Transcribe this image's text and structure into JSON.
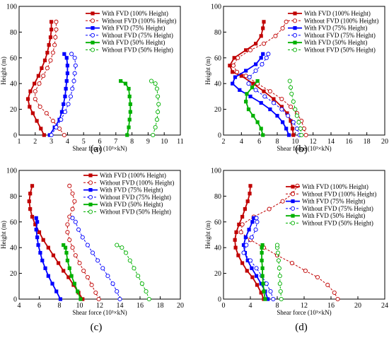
{
  "chart_data": [
    {
      "type": "line",
      "panel_label": "(a)",
      "xlabel": "Shear force (10³×kN)",
      "ylabel": "Height (m)",
      "xlim": [
        1,
        11
      ],
      "ylim": [
        0,
        100
      ],
      "xticks": [
        1,
        2,
        3,
        4,
        5,
        6,
        7,
        8,
        9,
        10,
        11
      ],
      "yticks": [
        0,
        20,
        40,
        60,
        80,
        100
      ],
      "legend_position": "top-right",
      "series": [
        {
          "name": "With FVD (100% Height)",
          "color": "#c00000",
          "marker": "square",
          "dashed": false,
          "x": [
            2.55,
            2.35,
            2.1,
            1.85,
            1.65,
            1.55,
            1.7,
            1.95,
            2.2,
            2.4,
            2.6,
            2.75,
            2.85,
            2.95,
            3.0,
            3.0
          ],
          "y": [
            0,
            5,
            11,
            17,
            22,
            28,
            34,
            40,
            46,
            52,
            58,
            64,
            70,
            76,
            82,
            88
          ]
        },
        {
          "name": "Without FVD (100% Height)",
          "color": "#c00000",
          "marker": "circle",
          "dashed": true,
          "x": [
            3.8,
            3.5,
            3.1,
            2.7,
            2.3,
            2.0,
            2.0,
            2.25,
            2.5,
            2.75,
            2.95,
            3.1,
            3.2,
            3.25,
            3.3,
            3.3
          ],
          "y": [
            0,
            5,
            11,
            17,
            22,
            28,
            34,
            40,
            46,
            52,
            58,
            64,
            70,
            76,
            82,
            88
          ]
        },
        {
          "name": "With FVD (75% Height)",
          "color": "#0000ff",
          "marker": "square",
          "dashed": false,
          "x": [
            2.9,
            3.2,
            3.5,
            3.65,
            3.75,
            3.85,
            3.9,
            3.95,
            4.0,
            4.0,
            3.95,
            3.8
          ],
          "y": [
            0,
            6,
            12,
            18,
            24,
            30,
            36,
            42,
            48,
            54,
            60,
            63
          ]
        },
        {
          "name": "Without FVD (75% Height)",
          "color": "#0000ff",
          "marker": "circle",
          "dashed": true,
          "x": [
            3.0,
            3.3,
            3.6,
            3.85,
            4.05,
            4.2,
            4.3,
            4.4,
            4.45,
            4.5,
            4.45,
            4.25
          ],
          "y": [
            0,
            6,
            12,
            18,
            24,
            30,
            36,
            42,
            48,
            54,
            60,
            63
          ]
        },
        {
          "name": "With FVD (50% Height)",
          "color": "#00b000",
          "marker": "square",
          "dashed": false,
          "x": [
            7.7,
            7.8,
            7.85,
            7.9,
            7.9,
            7.85,
            7.8,
            7.6,
            7.3
          ],
          "y": [
            0,
            6,
            12,
            18,
            24,
            30,
            36,
            40,
            42
          ]
        },
        {
          "name": "Without FVD (50% Height)",
          "color": "#00b000",
          "marker": "circle",
          "dashed": true,
          "x": [
            9.3,
            9.45,
            9.55,
            9.6,
            9.65,
            9.6,
            9.55,
            9.45,
            9.2
          ],
          "y": [
            0,
            6,
            12,
            18,
            24,
            30,
            36,
            40,
            42
          ]
        }
      ]
    },
    {
      "type": "line",
      "panel_label": "(b)",
      "xlabel": "Shear force (10³×kN)",
      "ylabel": "Height (m)",
      "xlim": [
        2,
        20
      ],
      "ylim": [
        0,
        100
      ],
      "xticks": [
        2,
        4,
        6,
        8,
        10,
        12,
        14,
        16,
        18,
        20
      ],
      "yticks": [
        0,
        20,
        40,
        60,
        80,
        100
      ],
      "legend_position": "top-right",
      "series": [
        {
          "name": "With FVD (100% Height)",
          "color": "#c00000",
          "marker": "square",
          "dashed": false,
          "x": [
            9.8,
            9.7,
            9.5,
            9.1,
            8.5,
            7.6,
            6.5,
            5.3,
            4.0,
            3.0,
            2.7,
            3.2,
            4.5,
            5.6,
            6.2,
            6.4,
            6.5
          ],
          "y": [
            0,
            5,
            11,
            17,
            22,
            28,
            34,
            40,
            46,
            49,
            54,
            60,
            66,
            71,
            77,
            83,
            88
          ]
        },
        {
          "name": "Without FVD (100% Height)",
          "color": "#c00000",
          "marker": "circle",
          "dashed": true,
          "x": [
            11.2,
            11.0,
            10.7,
            10.2,
            9.5,
            8.5,
            7.2,
            5.8,
            4.5,
            3.5,
            3.1,
            3.6,
            5.0,
            6.5,
            7.8,
            8.6,
            9.0
          ],
          "y": [
            0,
            5,
            11,
            17,
            22,
            28,
            34,
            40,
            46,
            49,
            54,
            60,
            66,
            71,
            77,
            83,
            88
          ]
        },
        {
          "name": "With FVD (75% Height)",
          "color": "#0000ff",
          "marker": "square",
          "dashed": false,
          "x": [
            9.3,
            9.0,
            8.6,
            8.0,
            7.2,
            6.2,
            5.0,
            3.8,
            3.0,
            3.3,
            4.5,
            5.6,
            6.2,
            6.4
          ],
          "y": [
            0,
            5,
            10,
            15,
            20,
            25,
            30,
            35,
            40,
            45,
            50,
            55,
            60,
            63
          ]
        },
        {
          "name": "Without FVD (75% Height)",
          "color": "#0000ff",
          "marker": "circle",
          "dashed": true,
          "x": [
            10.5,
            10.2,
            9.8,
            9.2,
            8.5,
            7.6,
            6.6,
            5.6,
            4.8,
            4.9,
            5.6,
            6.3,
            6.8,
            7.0
          ],
          "y": [
            0,
            5,
            10,
            15,
            20,
            25,
            30,
            35,
            40,
            45,
            50,
            55,
            60,
            63
          ]
        },
        {
          "name": "With FVD (50% Height)",
          "color": "#00b000",
          "marker": "square",
          "dashed": false,
          "x": [
            6.4,
            6.2,
            5.8,
            5.3,
            4.8,
            4.5,
            4.6,
            5.2,
            5.8
          ],
          "y": [
            0,
            5,
            10,
            15,
            20,
            26,
            32,
            37,
            42
          ]
        },
        {
          "name": "Without FVD (50% Height)",
          "color": "#00b000",
          "marker": "circle",
          "dashed": true,
          "x": [
            10.7,
            10.6,
            10.4,
            10.2,
            10.0,
            9.8,
            9.6,
            9.5,
            9.4
          ],
          "y": [
            0,
            5,
            10,
            15,
            20,
            26,
            32,
            37,
            42
          ]
        }
      ]
    },
    {
      "type": "line",
      "panel_label": "(c)",
      "xlabel": "Shear force (10³×kN)",
      "ylabel": "Height (m)",
      "xlim": [
        4,
        20
      ],
      "ylim": [
        0,
        100
      ],
      "xticks": [
        4,
        6,
        8,
        10,
        12,
        14,
        16,
        18,
        20
      ],
      "yticks": [
        0,
        20,
        40,
        60,
        80,
        100
      ],
      "legend_position": "top-right",
      "series": [
        {
          "name": "With FVD (100% Height)",
          "color": "#c00000",
          "marker": "square",
          "dashed": false,
          "x": [
            10.3,
            9.9,
            9.4,
            8.9,
            8.4,
            7.9,
            7.4,
            6.9,
            6.4,
            6.0,
            5.6,
            5.3,
            5.1,
            5.0,
            5.1,
            5.3
          ],
          "y": [
            0,
            5,
            11,
            17,
            22,
            28,
            34,
            40,
            46,
            52,
            58,
            64,
            70,
            76,
            82,
            88
          ]
        },
        {
          "name": "Without FVD (100% Height)",
          "color": "#c00000",
          "marker": "circle",
          "dashed": true,
          "x": [
            11.9,
            11.6,
            11.2,
            10.8,
            10.4,
            10.0,
            9.6,
            9.3,
            9.0,
            8.8,
            8.8,
            9.0,
            9.3,
            9.5,
            9.3,
            9.0
          ],
          "y": [
            0,
            5,
            11,
            17,
            22,
            28,
            34,
            40,
            46,
            52,
            58,
            64,
            70,
            76,
            82,
            88
          ]
        },
        {
          "name": "With FVD (75% Height)",
          "color": "#0000ff",
          "marker": "square",
          "dashed": false,
          "x": [
            8.1,
            7.7,
            7.3,
            6.9,
            6.6,
            6.3,
            6.1,
            5.9,
            5.8,
            5.7,
            5.8,
            5.7
          ],
          "y": [
            0,
            6,
            12,
            18,
            24,
            30,
            36,
            42,
            48,
            54,
            60,
            63
          ]
        },
        {
          "name": "Without FVD (75% Height)",
          "color": "#0000ff",
          "marker": "circle",
          "dashed": true,
          "x": [
            14.0,
            13.7,
            13.3,
            12.8,
            12.3,
            11.8,
            11.3,
            10.8,
            10.3,
            9.9,
            9.6,
            9.3
          ],
          "y": [
            0,
            6,
            12,
            18,
            24,
            30,
            36,
            42,
            48,
            54,
            60,
            63
          ]
        },
        {
          "name": "With FVD (50% Height)",
          "color": "#00b000",
          "marker": "square",
          "dashed": false,
          "x": [
            10.1,
            9.8,
            9.5,
            9.2,
            9.0,
            8.8,
            8.7,
            8.6,
            8.4
          ],
          "y": [
            0,
            6,
            12,
            18,
            24,
            30,
            36,
            40,
            42
          ]
        },
        {
          "name": "Without FVD (50% Height)",
          "color": "#00b000",
          "marker": "circle",
          "dashed": true,
          "x": [
            16.9,
            16.6,
            16.2,
            15.8,
            15.4,
            15.0,
            14.6,
            14.2,
            13.7
          ],
          "y": [
            0,
            6,
            12,
            18,
            24,
            30,
            36,
            40,
            42
          ]
        }
      ]
    },
    {
      "type": "line",
      "panel_label": "(d)",
      "xlabel": "Shear force (10³×kN)",
      "ylabel": "Height (m)",
      "xlim": [
        0,
        24
      ],
      "ylim": [
        0,
        100
      ],
      "xticks": [
        0,
        4,
        8,
        12,
        16,
        20,
        24
      ],
      "yticks": [
        0,
        20,
        40,
        60,
        80,
        100
      ],
      "legend_position": "top-right",
      "series": [
        {
          "name": "With FVD (100% Height)",
          "color": "#c00000",
          "marker": "square",
          "dashed": false,
          "x": [
            6.0,
            5.6,
            5.0,
            4.3,
            3.5,
            2.8,
            2.2,
            1.8,
            1.7,
            1.9,
            2.3,
            2.8,
            3.2,
            3.6,
            3.9,
            4.0
          ],
          "y": [
            0,
            5,
            11,
            17,
            22,
            28,
            34,
            40,
            46,
            52,
            58,
            64,
            70,
            76,
            82,
            88
          ]
        },
        {
          "name": "Without FVD (100% Height)",
          "color": "#c00000",
          "marker": "circle",
          "dashed": true,
          "x": [
            17.0,
            16.5,
            15.5,
            14.0,
            12.2,
            10.2,
            8.0,
            6.0,
            4.0,
            2.6,
            2.8,
            4.5,
            6.8,
            8.8,
            10.3,
            11.0
          ],
          "y": [
            0,
            5,
            11,
            17,
            22,
            28,
            34,
            40,
            46,
            52,
            58,
            64,
            70,
            76,
            82,
            88
          ]
        },
        {
          "name": "With FVD (75% Height)",
          "color": "#0000ff",
          "marker": "square",
          "dashed": false,
          "x": [
            6.6,
            6.2,
            5.6,
            4.9,
            4.2,
            3.6,
            3.2,
            3.0,
            3.3,
            3.8,
            4.3,
            4.5
          ],
          "y": [
            0,
            6,
            12,
            18,
            24,
            30,
            36,
            42,
            48,
            54,
            60,
            63
          ]
        },
        {
          "name": "Without FVD (75% Height)",
          "color": "#0000ff",
          "marker": "circle",
          "dashed": true,
          "x": [
            7.4,
            7.0,
            6.4,
            5.7,
            4.9,
            4.0,
            3.0,
            3.4,
            4.2,
            4.8,
            5.0,
            4.9
          ],
          "y": [
            0,
            6,
            12,
            18,
            24,
            30,
            36,
            42,
            48,
            54,
            60,
            63
          ]
        },
        {
          "name": "With FVD (50% Height)",
          "color": "#00b000",
          "marker": "square",
          "dashed": false,
          "x": [
            6.2,
            6.0,
            5.9,
            5.8,
            5.8,
            5.7,
            5.7,
            5.7,
            5.8
          ],
          "y": [
            0,
            6,
            12,
            18,
            24,
            30,
            36,
            40,
            42
          ]
        },
        {
          "name": "Without FVD (50% Height)",
          "color": "#00b000",
          "marker": "circle",
          "dashed": true,
          "x": [
            8.6,
            8.5,
            8.4,
            8.4,
            8.3,
            8.2,
            8.1,
            8.0,
            8.0
          ],
          "y": [
            0,
            6,
            12,
            18,
            24,
            30,
            36,
            40,
            42
          ]
        }
      ]
    }
  ]
}
